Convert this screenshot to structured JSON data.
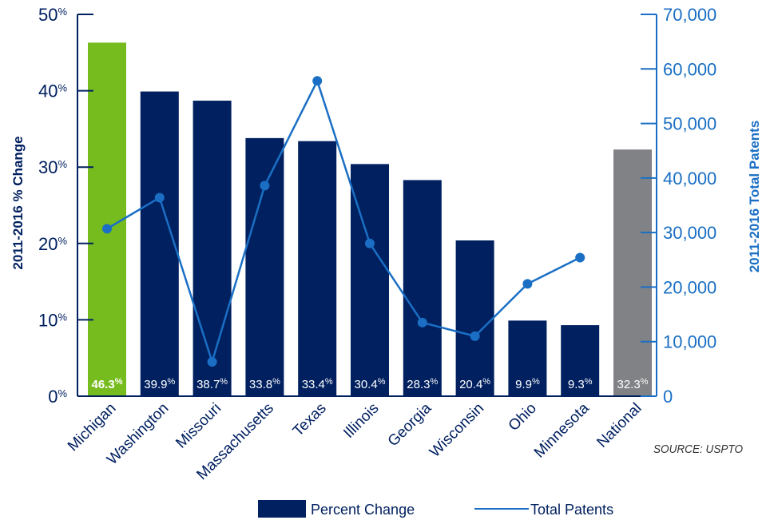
{
  "chart_data": {
    "type": "bar+line",
    "categories": [
      "Michigan",
      "Washington",
      "Missouri",
      "Massachusetts",
      "Texas",
      "Illinois",
      "Georgia",
      "Wisconsin",
      "Ohio",
      "Minnesota",
      "National"
    ],
    "series": [
      {
        "name": "Percent Change",
        "type": "bar",
        "axis": "left",
        "values": [
          46.3,
          39.9,
          38.7,
          33.8,
          33.4,
          30.4,
          28.3,
          20.4,
          9.9,
          9.3,
          32.3
        ],
        "labels": [
          "46.3",
          "39.9",
          "38.7",
          "33.8",
          "33.4",
          "30.4",
          "28.3",
          "20.4",
          "9.9",
          "9.3",
          "32.3"
        ],
        "bar_colors": [
          "#77bc1f",
          "#002060",
          "#002060",
          "#002060",
          "#002060",
          "#002060",
          "#002060",
          "#002060",
          "#002060",
          "#002060",
          "#808285"
        ]
      },
      {
        "name": "Total Patents",
        "type": "line",
        "axis": "right",
        "values": [
          30700,
          36400,
          6300,
          38600,
          57800,
          28000,
          13500,
          11000,
          20600,
          25400,
          null
        ],
        "color": "#1a6fc4"
      }
    ],
    "y_left": {
      "label": "2011-2016 % Change",
      "range": [
        0,
        50
      ],
      "ticks": [
        "0",
        "10",
        "20",
        "30",
        "40",
        "50"
      ],
      "tick_suffix": "%"
    },
    "y_right": {
      "label": "2011-2016 Total Patents",
      "range": [
        0,
        70000
      ],
      "ticks": [
        "0",
        "10,000",
        "20,000",
        "30,000",
        "40,000",
        "50,000",
        "60,000",
        "70,000"
      ]
    },
    "label_suffix": "%",
    "source": "SOURCE: USPTO",
    "legend": {
      "placement": "bottom",
      "items": [
        {
          "label": "Percent Change",
          "kind": "bar",
          "color": "#002060"
        },
        {
          "label": "Total Patents",
          "kind": "line",
          "color": "#1a6fc4"
        }
      ]
    },
    "grid": false
  }
}
